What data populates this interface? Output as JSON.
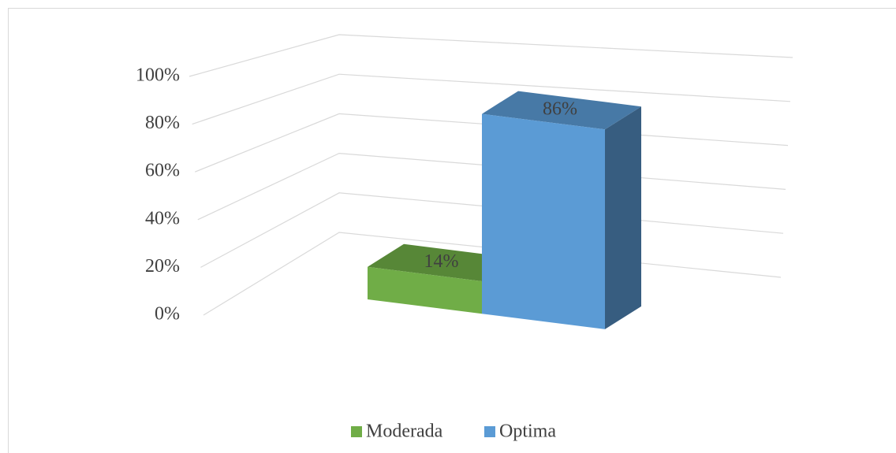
{
  "chart_data": {
    "type": "bar",
    "categories": [
      null
    ],
    "series": [
      {
        "name": "Moderada",
        "color": "#70ad47",
        "values": [
          14
        ],
        "value_labels": [
          "14%"
        ]
      },
      {
        "name": "Optima",
        "color": "#5b9bd5",
        "values": [
          86
        ],
        "value_labels": [
          "86%"
        ]
      }
    ],
    "ylim": [
      0,
      100
    ],
    "yticks": [
      {
        "value": 0,
        "label": "0%"
      },
      {
        "value": 20,
        "label": "20%"
      },
      {
        "value": 40,
        "label": "40%"
      },
      {
        "value": 60,
        "label": "60%"
      },
      {
        "value": 80,
        "label": "80%"
      },
      {
        "value": 100,
        "label": "100%"
      }
    ],
    "grid": true,
    "legend": "bottom"
  }
}
